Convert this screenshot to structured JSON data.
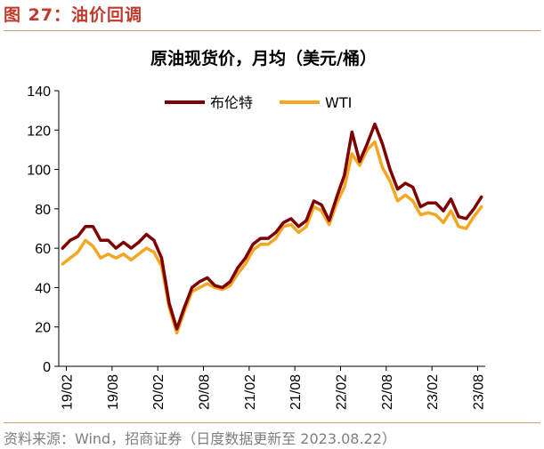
{
  "figure_label": "图 27：油价回调",
  "source_note": "资料来源：Wind，招商证券（日度数据更新至 2023.08.22）",
  "colors": {
    "brent": "#7f0000",
    "wti": "#f5a623",
    "label": "#c0392b"
  },
  "chart_data": {
    "type": "line",
    "title": "原油现货价，月均（美元/桶）",
    "xlabel": "",
    "ylabel": "",
    "ylim": [
      0,
      140
    ],
    "yticks": [
      0,
      20,
      40,
      60,
      80,
      100,
      120,
      140
    ],
    "xtick_labels": [
      "19/02",
      "19/08",
      "20/02",
      "20/08",
      "21/02",
      "21/08",
      "22/02",
      "22/08",
      "23/02",
      "23/08"
    ],
    "x": [
      "19/01",
      "19/02",
      "19/03",
      "19/04",
      "19/05",
      "19/06",
      "19/07",
      "19/08",
      "19/09",
      "19/10",
      "19/11",
      "19/12",
      "20/01",
      "20/02",
      "20/03",
      "20/04",
      "20/05",
      "20/06",
      "20/07",
      "20/08",
      "20/09",
      "20/10",
      "20/11",
      "20/12",
      "21/01",
      "21/02",
      "21/03",
      "21/04",
      "21/05",
      "21/06",
      "21/07",
      "21/08",
      "21/09",
      "21/10",
      "21/11",
      "21/12",
      "22/01",
      "22/02",
      "22/03",
      "22/04",
      "22/05",
      "22/06",
      "22/07",
      "22/08",
      "22/09",
      "22/10",
      "22/11",
      "22/12",
      "23/01",
      "23/02",
      "23/03",
      "23/04",
      "23/05",
      "23/06",
      "23/07",
      "23/08"
    ],
    "legend_position": "top",
    "series": [
      {
        "name": "布伦特",
        "values": [
          60,
          64,
          66,
          71,
          71,
          64,
          64,
          60,
          63,
          60,
          63,
          67,
          64,
          55,
          32,
          19,
          30,
          40,
          43,
          45,
          41,
          40,
          43,
          50,
          55,
          62,
          65,
          65,
          68,
          73,
          75,
          71,
          74,
          84,
          82,
          74,
          86,
          97,
          119,
          104,
          113,
          123,
          113,
          100,
          90,
          93,
          91,
          81,
          83,
          83,
          79,
          85,
          76,
          75,
          80,
          86
        ]
      },
      {
        "name": "WTI",
        "values": [
          52,
          55,
          58,
          64,
          61,
          55,
          57,
          55,
          57,
          54,
          57,
          60,
          58,
          51,
          30,
          17,
          28,
          38,
          40,
          42,
          40,
          39,
          41,
          47,
          52,
          59,
          62,
          62,
          65,
          71,
          72,
          68,
          71,
          81,
          79,
          72,
          83,
          91,
          108,
          102,
          110,
          114,
          101,
          94,
          84,
          87,
          84,
          77,
          78,
          77,
          73,
          79,
          71,
          70,
          76,
          81
        ]
      }
    ]
  }
}
